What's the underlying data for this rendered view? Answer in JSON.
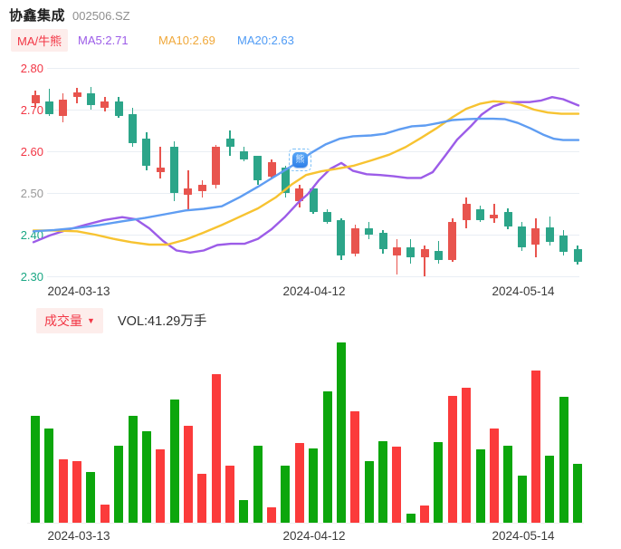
{
  "header": {
    "title": "协鑫集成",
    "code": "002506.SZ"
  },
  "legend": {
    "ma_badge": "MA/牛熊",
    "ma5": "MA5:2.71",
    "ma10": "MA10:2.69",
    "ma20": "MA20:2.63",
    "ma5_color": "#9c5ce8",
    "ma10_color": "#f0a83a",
    "ma20_color": "#4f9bf5",
    "badge_color": "#f23645",
    "badge_bg": "#fdedeb"
  },
  "volume_header": {
    "badge": "成交量",
    "badge_arrow": "▼",
    "vol_label": "VOL:41.29万手"
  },
  "colors": {
    "candle_up": "#e8544e",
    "candle_down": "#2ca589",
    "vol_up": "#fb3b3b",
    "vol_down": "#0ca60c",
    "grid": "#e9eef4",
    "tick_red": "#f23645",
    "tick_gray": "#999999",
    "tick_green": "#1ba784"
  },
  "chart_data": {
    "type": "candlestick",
    "name": "协鑫集成",
    "symbol": "002506.SZ",
    "ylim": [
      2.3,
      2.8
    ],
    "grid": true,
    "y_ticks": [
      {
        "label": "2.80",
        "color": "#f23645"
      },
      {
        "label": "2.70",
        "color": "#f23645"
      },
      {
        "label": "2.60",
        "color": "#f23645"
      },
      {
        "label": "2.50",
        "color": "#999999"
      },
      {
        "label": "2.40",
        "color": "#1ba784"
      },
      {
        "label": "2.30",
        "color": "#1ba784"
      }
    ],
    "x_ticks": [
      {
        "label": "2024-03-13",
        "x": 87
      },
      {
        "label": "2024-04-12",
        "x": 347
      },
      {
        "label": "2024-05-14",
        "x": 578
      }
    ],
    "candles": [
      {
        "o": 2.715,
        "h": 2.745,
        "l": 2.705,
        "c": 2.735,
        "dir": "up",
        "vol_h": 118,
        "vol_dir": "down"
      },
      {
        "o": 2.72,
        "h": 2.75,
        "l": 2.685,
        "c": 2.69,
        "dir": "down",
        "vol_h": 104,
        "vol_dir": "down"
      },
      {
        "o": 2.685,
        "h": 2.74,
        "l": 2.67,
        "c": 2.725,
        "dir": "up",
        "vol_h": 70,
        "vol_dir": "up"
      },
      {
        "o": 2.73,
        "h": 2.752,
        "l": 2.715,
        "c": 2.742,
        "dir": "up",
        "vol_h": 68,
        "vol_dir": "up"
      },
      {
        "o": 2.74,
        "h": 2.755,
        "l": 2.7,
        "c": 2.71,
        "dir": "down",
        "vol_h": 56,
        "vol_dir": "down"
      },
      {
        "o": 2.705,
        "h": 2.73,
        "l": 2.695,
        "c": 2.72,
        "dir": "up",
        "vol_h": 20,
        "vol_dir": "up"
      },
      {
        "o": 2.72,
        "h": 2.73,
        "l": 2.68,
        "c": 2.685,
        "dir": "down",
        "vol_h": 85,
        "vol_dir": "down"
      },
      {
        "o": 2.69,
        "h": 2.705,
        "l": 2.61,
        "c": 2.62,
        "dir": "down",
        "vol_h": 118,
        "vol_dir": "down"
      },
      {
        "o": 2.63,
        "h": 2.645,
        "l": 2.555,
        "c": 2.565,
        "dir": "down",
        "vol_h": 101,
        "vol_dir": "down"
      },
      {
        "o": 2.55,
        "h": 2.61,
        "l": 2.535,
        "c": 2.56,
        "dir": "up",
        "vol_h": 81,
        "vol_dir": "up"
      },
      {
        "o": 2.61,
        "h": 2.625,
        "l": 2.48,
        "c": 2.5,
        "dir": "down",
        "vol_h": 136,
        "vol_dir": "down"
      },
      {
        "o": 2.495,
        "h": 2.555,
        "l": 2.46,
        "c": 2.51,
        "dir": "up",
        "vol_h": 107,
        "vol_dir": "up"
      },
      {
        "o": 2.505,
        "h": 2.53,
        "l": 2.49,
        "c": 2.52,
        "dir": "up",
        "vol_h": 54,
        "vol_dir": "up"
      },
      {
        "o": 2.52,
        "h": 2.615,
        "l": 2.51,
        "c": 2.61,
        "dir": "up",
        "vol_h": 164,
        "vol_dir": "up"
      },
      {
        "o": 2.63,
        "h": 2.65,
        "l": 2.59,
        "c": 2.61,
        "dir": "down",
        "vol_h": 63,
        "vol_dir": "up"
      },
      {
        "o": 2.6,
        "h": 2.61,
        "l": 2.575,
        "c": 2.58,
        "dir": "down",
        "vol_h": 25,
        "vol_dir": "down"
      },
      {
        "o": 2.59,
        "h": 2.59,
        "l": 2.52,
        "c": 2.53,
        "dir": "down",
        "vol_h": 85,
        "vol_dir": "down"
      },
      {
        "o": 2.54,
        "h": 2.58,
        "l": 2.535,
        "c": 2.575,
        "dir": "up",
        "vol_h": 17,
        "vol_dir": "up"
      },
      {
        "o": 2.56,
        "h": 2.565,
        "l": 2.49,
        "c": 2.5,
        "dir": "down",
        "vol_h": 63,
        "vol_dir": "down"
      },
      {
        "o": 2.48,
        "h": 2.52,
        "l": 2.465,
        "c": 2.51,
        "dir": "up",
        "vol_h": 88,
        "vol_dir": "up"
      },
      {
        "o": 2.51,
        "h": 2.515,
        "l": 2.45,
        "c": 2.455,
        "dir": "down",
        "vol_h": 82,
        "vol_dir": "down"
      },
      {
        "o": 2.455,
        "h": 2.46,
        "l": 2.425,
        "c": 2.43,
        "dir": "down",
        "vol_h": 145,
        "vol_dir": "down"
      },
      {
        "o": 2.435,
        "h": 2.44,
        "l": 2.34,
        "c": 2.35,
        "dir": "down",
        "vol_h": 199,
        "vol_dir": "down"
      },
      {
        "o": 2.355,
        "h": 2.425,
        "l": 2.348,
        "c": 2.415,
        "dir": "up",
        "vol_h": 123,
        "vol_dir": "up"
      },
      {
        "o": 2.415,
        "h": 2.43,
        "l": 2.39,
        "c": 2.4,
        "dir": "down",
        "vol_h": 68,
        "vol_dir": "down"
      },
      {
        "o": 2.405,
        "h": 2.41,
        "l": 2.355,
        "c": 2.365,
        "dir": "down",
        "vol_h": 90,
        "vol_dir": "down"
      },
      {
        "o": 2.35,
        "h": 2.39,
        "l": 2.305,
        "c": 2.37,
        "dir": "up",
        "vol_h": 84,
        "vol_dir": "up"
      },
      {
        "o": 2.37,
        "h": 2.39,
        "l": 2.33,
        "c": 2.345,
        "dir": "down",
        "vol_h": 10,
        "vol_dir": "down"
      },
      {
        "o": 2.345,
        "h": 2.375,
        "l": 2.3,
        "c": 2.365,
        "dir": "up",
        "vol_h": 19,
        "vol_dir": "up"
      },
      {
        "o": 2.36,
        "h": 2.385,
        "l": 2.33,
        "c": 2.34,
        "dir": "down",
        "vol_h": 89,
        "vol_dir": "down"
      },
      {
        "o": 2.34,
        "h": 2.44,
        "l": 2.335,
        "c": 2.43,
        "dir": "up",
        "vol_h": 140,
        "vol_dir": "up"
      },
      {
        "o": 2.435,
        "h": 2.49,
        "l": 2.415,
        "c": 2.475,
        "dir": "up",
        "vol_h": 149,
        "vol_dir": "up"
      },
      {
        "o": 2.46,
        "h": 2.47,
        "l": 2.43,
        "c": 2.435,
        "dir": "down",
        "vol_h": 81,
        "vol_dir": "down"
      },
      {
        "o": 2.44,
        "h": 2.475,
        "l": 2.428,
        "c": 2.448,
        "dir": "up",
        "vol_h": 104,
        "vol_dir": "up"
      },
      {
        "o": 2.455,
        "h": 2.462,
        "l": 2.414,
        "c": 2.42,
        "dir": "down",
        "vol_h": 85,
        "vol_dir": "down"
      },
      {
        "o": 2.42,
        "h": 2.43,
        "l": 2.36,
        "c": 2.37,
        "dir": "down",
        "vol_h": 52,
        "vol_dir": "down"
      },
      {
        "o": 2.375,
        "h": 2.44,
        "l": 2.345,
        "c": 2.415,
        "dir": "up",
        "vol_h": 168,
        "vol_dir": "up"
      },
      {
        "o": 2.418,
        "h": 2.443,
        "l": 2.374,
        "c": 2.382,
        "dir": "down",
        "vol_h": 74,
        "vol_dir": "down"
      },
      {
        "o": 2.398,
        "h": 2.41,
        "l": 2.35,
        "c": 2.358,
        "dir": "down",
        "vol_h": 139,
        "vol_dir": "down"
      },
      {
        "o": 2.365,
        "h": 2.375,
        "l": 2.328,
        "c": 2.335,
        "dir": "down",
        "vol_h": 65,
        "vol_dir": "down"
      }
    ],
    "ma_lines": [
      {
        "name": "MA5",
        "value": "2.71",
        "color": "#9c5ce8",
        "points": [
          [
            37,
            2.382
          ],
          [
            55,
            2.398
          ],
          [
            75,
            2.412
          ],
          [
            95,
            2.424
          ],
          [
            115,
            2.435
          ],
          [
            135,
            2.442
          ],
          [
            150,
            2.437
          ],
          [
            165,
            2.415
          ],
          [
            180,
            2.385
          ],
          [
            195,
            2.362
          ],
          [
            210,
            2.357
          ],
          [
            225,
            2.362
          ],
          [
            240,
            2.375
          ],
          [
            255,
            2.378
          ],
          [
            270,
            2.378
          ],
          [
            285,
            2.39
          ],
          [
            300,
            2.413
          ],
          [
            315,
            2.443
          ],
          [
            330,
            2.478
          ],
          [
            340,
            2.497
          ],
          [
            352,
            2.53
          ],
          [
            365,
            2.558
          ],
          [
            377,
            2.572
          ],
          [
            390,
            2.553
          ],
          [
            405,
            2.545
          ],
          [
            420,
            2.543
          ],
          [
            435,
            2.54
          ],
          [
            450,
            2.536
          ],
          [
            465,
            2.536
          ],
          [
            478,
            2.55
          ],
          [
            492,
            2.59
          ],
          [
            505,
            2.628
          ],
          [
            520,
            2.66
          ],
          [
            532,
            2.688
          ],
          [
            545,
            2.708
          ],
          [
            558,
            2.717
          ],
          [
            572,
            2.718
          ],
          [
            585,
            2.718
          ],
          [
            598,
            2.722
          ],
          [
            610,
            2.73
          ],
          [
            622,
            2.725
          ],
          [
            639,
            2.71
          ]
        ]
      },
      {
        "name": "MA10",
        "value": "2.69",
        "color": "#f7c331",
        "points": [
          [
            37,
            2.41
          ],
          [
            60,
            2.41
          ],
          [
            85,
            2.408
          ],
          [
            105,
            2.4
          ],
          [
            125,
            2.39
          ],
          [
            145,
            2.382
          ],
          [
            165,
            2.376
          ],
          [
            185,
            2.376
          ],
          [
            205,
            2.388
          ],
          [
            225,
            2.405
          ],
          [
            245,
            2.423
          ],
          [
            265,
            2.443
          ],
          [
            285,
            2.463
          ],
          [
            305,
            2.49
          ],
          [
            322,
            2.52
          ],
          [
            338,
            2.543
          ],
          [
            355,
            2.552
          ],
          [
            372,
            2.558
          ],
          [
            390,
            2.565
          ],
          [
            410,
            2.578
          ],
          [
            430,
            2.592
          ],
          [
            448,
            2.61
          ],
          [
            465,
            2.632
          ],
          [
            482,
            2.655
          ],
          [
            500,
            2.682
          ],
          [
            515,
            2.702
          ],
          [
            530,
            2.714
          ],
          [
            545,
            2.72
          ],
          [
            560,
            2.718
          ],
          [
            575,
            2.712
          ],
          [
            590,
            2.7
          ],
          [
            605,
            2.693
          ],
          [
            620,
            2.69
          ],
          [
            639,
            2.69
          ]
        ]
      },
      {
        "name": "MA20",
        "value": "2.63",
        "color": "#5f9df2",
        "points": [
          [
            37,
            2.408
          ],
          [
            60,
            2.411
          ],
          [
            85,
            2.416
          ],
          [
            110,
            2.423
          ],
          [
            135,
            2.432
          ],
          [
            160,
            2.44
          ],
          [
            185,
            2.45
          ],
          [
            205,
            2.458
          ],
          [
            225,
            2.462
          ],
          [
            245,
            2.468
          ],
          [
            265,
            2.49
          ],
          [
            285,
            2.515
          ],
          [
            300,
            2.535
          ],
          [
            315,
            2.555
          ],
          [
            330,
            2.575
          ],
          [
            345,
            2.598
          ],
          [
            360,
            2.617
          ],
          [
            375,
            2.63
          ],
          [
            390,
            2.636
          ],
          [
            410,
            2.638
          ],
          [
            425,
            2.642
          ],
          [
            440,
            2.652
          ],
          [
            455,
            2.66
          ],
          [
            470,
            2.662
          ],
          [
            485,
            2.668
          ],
          [
            500,
            2.675
          ],
          [
            515,
            2.677
          ],
          [
            530,
            2.678
          ],
          [
            545,
            2.678
          ],
          [
            558,
            2.677
          ],
          [
            572,
            2.668
          ],
          [
            586,
            2.655
          ],
          [
            600,
            2.64
          ],
          [
            612,
            2.63
          ],
          [
            622,
            2.627
          ],
          [
            639,
            2.627
          ]
        ]
      }
    ],
    "marker": {
      "glyph": "熊",
      "x": 331,
      "y": 176
    },
    "volume_label": "VOL:41.29万手"
  }
}
